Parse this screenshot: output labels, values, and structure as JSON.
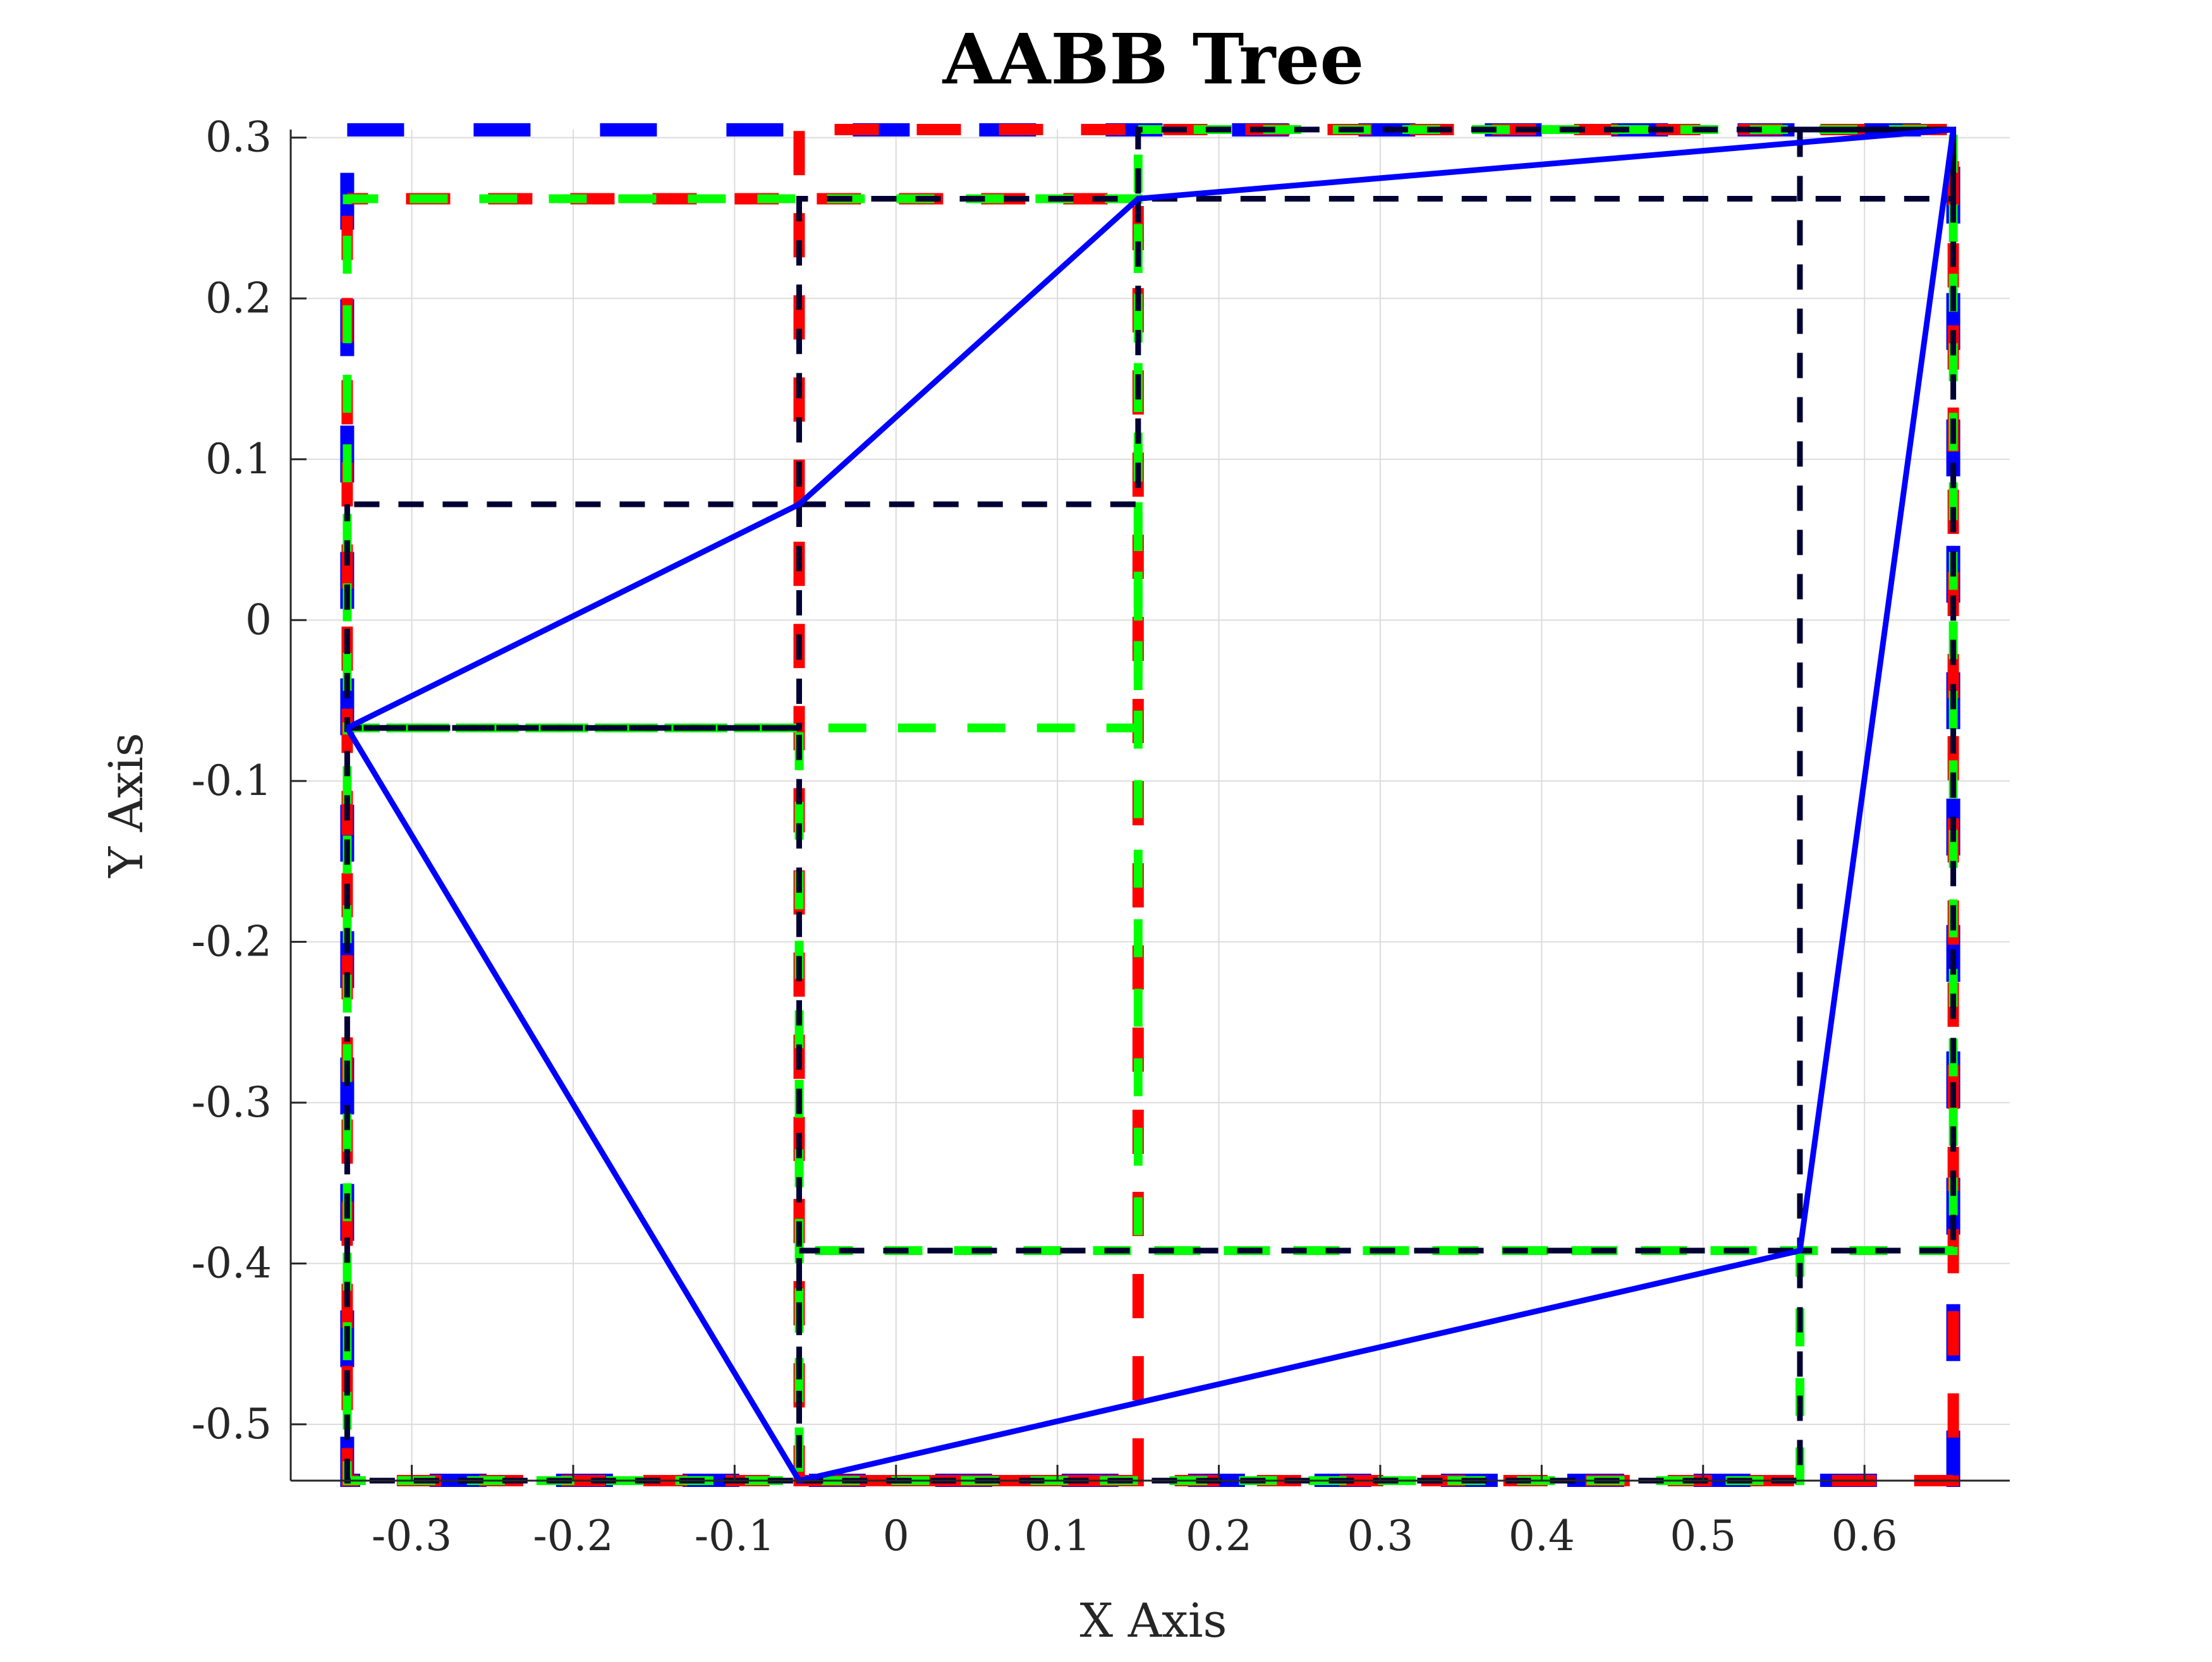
{
  "chart_data": {
    "type": "line",
    "title": "AABB Tree",
    "xlabel": "X Axis",
    "ylabel": "Y Axis",
    "xlim": [
      -0.375,
      0.69
    ],
    "ylim": [
      -0.535,
      0.305
    ],
    "x_ticks": [
      -0.3,
      -0.2,
      -0.1,
      0,
      0.1,
      0.2,
      0.3,
      0.4,
      0.5,
      0.6
    ],
    "y_ticks": [
      0.3,
      0.2,
      0.1,
      0,
      -0.1,
      -0.2,
      -0.3,
      -0.4,
      -0.5
    ],
    "x_tick_labels": [
      "-0.3",
      "-0.2",
      "-0.1",
      "0",
      "0.1",
      "0.2",
      "0.3",
      "0.4",
      "0.5",
      "0.6"
    ],
    "y_tick_labels": [
      "0.3",
      "0.2",
      "0.1",
      "0",
      "-0.1",
      "-0.2",
      "-0.3",
      "-0.4",
      "-0.5"
    ],
    "grid": true,
    "polygon": {
      "color": "#0000ff",
      "points": [
        [
          -0.34,
          -0.067
        ],
        [
          -0.06,
          0.072
        ],
        [
          0.15,
          0.262
        ],
        [
          0.655,
          0.305
        ],
        [
          0.56,
          -0.392
        ],
        [
          -0.06,
          -0.535
        ],
        [
          -0.34,
          -0.067
        ]
      ]
    },
    "boxes": [
      {
        "color": "#0000ff",
        "level": 0,
        "xmin": -0.34,
        "xmax": 0.655,
        "ymin": -0.535,
        "ymax": 0.305
      },
      {
        "color": "#ff0000",
        "level": 1,
        "xmin": -0.34,
        "xmax": 0.15,
        "ymin": -0.535,
        "ymax": 0.262
      },
      {
        "color": "#ff0000",
        "level": 1,
        "xmin": -0.06,
        "xmax": 0.655,
        "ymin": -0.535,
        "ymax": 0.305
      },
      {
        "color": "#00ff00",
        "level": 2,
        "xmin": -0.34,
        "xmax": 0.15,
        "ymin": -0.067,
        "ymax": 0.262
      },
      {
        "color": "#00ff00",
        "level": 2,
        "xmin": -0.34,
        "xmax": -0.06,
        "ymin": -0.535,
        "ymax": -0.067
      },
      {
        "color": "#00ff00",
        "level": 2,
        "xmin": -0.06,
        "xmax": 0.56,
        "ymin": -0.535,
        "ymax": -0.392
      },
      {
        "color": "#00ff00",
        "level": 2,
        "xmin": 0.15,
        "xmax": 0.655,
        "ymin": -0.392,
        "ymax": 0.305
      },
      {
        "color": "#000033",
        "level": 3,
        "xmin": -0.34,
        "xmax": -0.06,
        "ymin": -0.067,
        "ymax": 0.072
      },
      {
        "color": "#000033",
        "level": 3,
        "xmin": -0.06,
        "xmax": 0.15,
        "ymin": 0.072,
        "ymax": 0.262
      },
      {
        "color": "#000033",
        "level": 3,
        "xmin": 0.15,
        "xmax": 0.655,
        "ymin": 0.262,
        "ymax": 0.305
      },
      {
        "color": "#000033",
        "level": 3,
        "xmin": 0.56,
        "xmax": 0.655,
        "ymin": -0.392,
        "ymax": 0.305
      },
      {
        "color": "#000033",
        "level": 3,
        "xmin": -0.06,
        "xmax": 0.56,
        "ymin": -0.535,
        "ymax": -0.392
      },
      {
        "color": "#000033",
        "level": 3,
        "xmin": -0.34,
        "xmax": -0.06,
        "ymin": -0.535,
        "ymax": -0.067
      }
    ]
  }
}
